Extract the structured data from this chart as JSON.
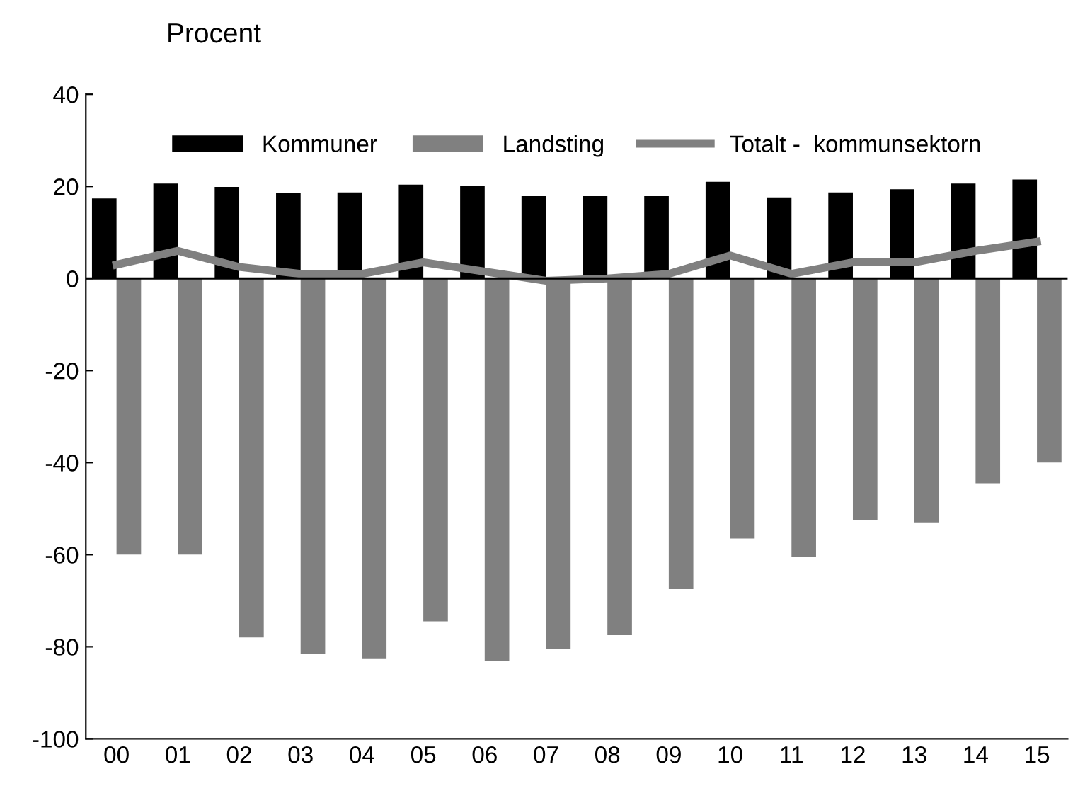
{
  "chart_data": {
    "type": "bar",
    "ylabel": "Procent",
    "categories": [
      "00",
      "01",
      "02",
      "03",
      "04",
      "05",
      "06",
      "07",
      "08",
      "09",
      "10",
      "11",
      "12",
      "13",
      "14",
      "15"
    ],
    "series": [
      {
        "name": "Kommuner",
        "color": "#000000",
        "values": [
          17.4,
          20.6,
          19.9,
          18.6,
          18.7,
          20.4,
          20.1,
          17.9,
          17.9,
          17.9,
          21.0,
          17.6,
          18.7,
          19.4,
          20.6,
          21.5
        ]
      },
      {
        "name": "Landsting",
        "color": "#808080",
        "values": [
          -60,
          -60,
          -78,
          -81.5,
          -82.5,
          -74.5,
          -83,
          -80.5,
          -77.5,
          -67.5,
          -56.5,
          -60.5,
          -52.5,
          -53,
          -44.5,
          -40
        ]
      },
      {
        "name": "Totalt -  kommunsektorn",
        "type": "line",
        "color": "#808080",
        "values": [
          3,
          6,
          2.5,
          1,
          1,
          3.5,
          1.5,
          -0.5,
          0,
          1,
          5,
          1,
          3.5,
          3.5,
          6,
          8
        ]
      }
    ],
    "ylim": [
      -100,
      40
    ],
    "yticks": [
      -100,
      -80,
      -60,
      -40,
      -20,
      0,
      20,
      40
    ],
    "grid": false,
    "ref_lines": [
      {
        "axis": "y",
        "value": 0,
        "color": "#000000"
      }
    ],
    "legend": "top",
    "marker": "none",
    "line_style": "solid"
  }
}
